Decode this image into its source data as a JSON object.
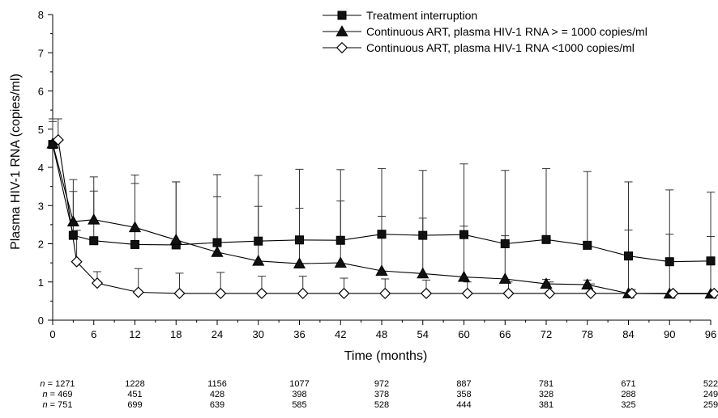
{
  "chart_data": {
    "type": "line",
    "title": "",
    "xlabel": "Time (months)",
    "ylabel": "Plasma HIV-1 RNA (copies/ml)",
    "xlim": [
      0,
      96
    ],
    "ylim": [
      0,
      8
    ],
    "xticks": [
      0,
      6,
      12,
      18,
      24,
      30,
      36,
      42,
      48,
      54,
      60,
      66,
      72,
      78,
      84,
      90,
      96
    ],
    "yticks": [
      0,
      1,
      2,
      3,
      4,
      5,
      6,
      7,
      8
    ],
    "grid": false,
    "legend_position": "top-right",
    "series": [
      {
        "name": "Treatment interruption",
        "marker": "square-filled",
        "color": "#000000",
        "points": [
          {
            "x": 0,
            "y": 4.6,
            "err": 0.6
          },
          {
            "x": 3,
            "y": 2.22,
            "err": 1.15
          },
          {
            "x": 6,
            "y": 2.08,
            "err": 1.3
          },
          {
            "x": 12,
            "y": 1.98,
            "err": 1.6
          },
          {
            "x": 18,
            "y": 1.97,
            "err": 1.65
          },
          {
            "x": 24,
            "y": 2.03,
            "err": 1.78
          },
          {
            "x": 30,
            "y": 2.07,
            "err": 1.72
          },
          {
            "x": 36,
            "y": 2.1,
            "err": 1.85
          },
          {
            "x": 42,
            "y": 2.09,
            "err": 1.85
          },
          {
            "x": 48,
            "y": 2.25,
            "err": 1.72
          },
          {
            "x": 54,
            "y": 2.22,
            "err": 1.7
          },
          {
            "x": 60,
            "y": 2.24,
            "err": 1.85
          },
          {
            "x": 66,
            "y": 2.0,
            "err": 1.92
          },
          {
            "x": 72,
            "y": 2.11,
            "err": 1.86
          },
          {
            "x": 78,
            "y": 1.96,
            "err": 1.93
          },
          {
            "x": 84,
            "y": 1.68,
            "err": 1.94
          },
          {
            "x": 90,
            "y": 1.53,
            "err": 1.88
          },
          {
            "x": 96,
            "y": 1.55,
            "err": 1.8
          }
        ]
      },
      {
        "name": "Continuous ART, plasma HIV-1 RNA > = 1000 copies/ml",
        "marker": "triangle-filled",
        "color": "#000000",
        "points": [
          {
            "x": 0,
            "y": 4.62,
            "err": 0.65
          },
          {
            "x": 3,
            "y": 2.58,
            "err": 1.1
          },
          {
            "x": 6,
            "y": 2.63,
            "err": 1.12
          },
          {
            "x": 12,
            "y": 2.43,
            "err": 1.37
          },
          {
            "x": 18,
            "y": 2.1,
            "err": 1.52
          },
          {
            "x": 24,
            "y": 1.78,
            "err": 1.45
          },
          {
            "x": 30,
            "y": 1.55,
            "err": 1.43
          },
          {
            "x": 36,
            "y": 1.48,
            "err": 1.45
          },
          {
            "x": 42,
            "y": 1.5,
            "err": 1.62
          },
          {
            "x": 48,
            "y": 1.29,
            "err": 1.43
          },
          {
            "x": 54,
            "y": 1.22,
            "err": 1.45
          },
          {
            "x": 60,
            "y": 1.13,
            "err": 1.33
          },
          {
            "x": 66,
            "y": 1.08,
            "err": 1.13
          },
          {
            "x": 72,
            "y": 0.95,
            "err": 0.12
          },
          {
            "x": 78,
            "y": 0.93,
            "err": 0.12
          },
          {
            "x": 84,
            "y": 0.7,
            "err": 1.66
          },
          {
            "x": 90,
            "y": 0.69,
            "err": 1.56
          },
          {
            "x": 96,
            "y": 0.69,
            "err": 1.5
          }
        ]
      },
      {
        "name": "Continuous ART, plasma HIV-1 RNA <1000 copies/ml",
        "marker": "diamond-open",
        "color": "#000000",
        "points": [
          {
            "x": 0.8,
            "y": 4.72,
            "err": 0.55
          },
          {
            "x": 3.5,
            "y": 1.53,
            "err": 0.82
          },
          {
            "x": 6.5,
            "y": 0.97,
            "err": 0.3
          },
          {
            "x": 12.5,
            "y": 0.73,
            "err": 0.62
          },
          {
            "x": 18.5,
            "y": 0.7,
            "err": 0.53
          },
          {
            "x": 24.5,
            "y": 0.7,
            "err": 0.55
          },
          {
            "x": 30.5,
            "y": 0.7,
            "err": 0.45
          },
          {
            "x": 36.5,
            "y": 0.7,
            "err": 0.45
          },
          {
            "x": 42.5,
            "y": 0.7,
            "err": 0.4
          },
          {
            "x": 48.5,
            "y": 0.7,
            "err": 0.38
          },
          {
            "x": 54.5,
            "y": 0.7,
            "err": 0.35
          },
          {
            "x": 60.5,
            "y": 0.7,
            "err": 0.3
          },
          {
            "x": 66.5,
            "y": 0.7,
            "err": 0.3
          },
          {
            "x": 72.5,
            "y": 0.7,
            "err": 0.3
          },
          {
            "x": 78.5,
            "y": 0.7,
            "err": 0.25
          },
          {
            "x": 84.5,
            "y": 0.7,
            "err": 0.1
          },
          {
            "x": 90.5,
            "y": 0.7,
            "err": 0.05
          },
          {
            "x": 96.5,
            "y": 0.7,
            "err": 0.05
          }
        ]
      }
    ],
    "n_at_risk": {
      "prefix": "n =",
      "x": [
        0,
        12,
        24,
        36,
        48,
        60,
        72,
        84,
        96
      ],
      "rows": [
        [
          1271,
          1228,
          1156,
          1077,
          972,
          887,
          781,
          671,
          522
        ],
        [
          469,
          451,
          428,
          398,
          378,
          358,
          328,
          288,
          249
        ],
        [
          751,
          699,
          639,
          585,
          528,
          444,
          381,
          325,
          259
        ]
      ]
    }
  }
}
